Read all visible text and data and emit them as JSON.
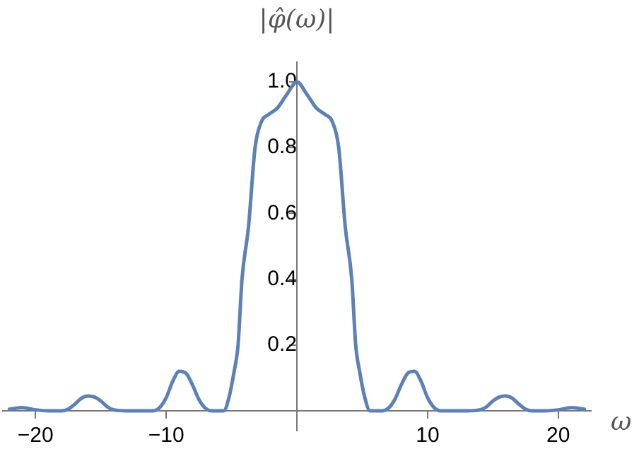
{
  "chart_data": {
    "type": "line",
    "ylabel": "|φ̂(ω)|",
    "xlabel": "ω",
    "series": [
      {
        "color": "#5e81b5",
        "x": [
          -22,
          -21,
          -20,
          -19,
          -18,
          -17.5,
          -17,
          -16.5,
          -16,
          -15.5,
          -15,
          -14.5,
          -14,
          -13,
          -11,
          -10.5,
          -10,
          -9.5,
          -9,
          -8.5,
          -8,
          -7.5,
          -7,
          -6.5,
          -5.6,
          -5.2,
          -4.8,
          -4.5,
          -4.2,
          -3.7,
          -3.2,
          -2.7,
          -2.2,
          -1.5,
          -0.8,
          0,
          0.8,
          1.5,
          2.2,
          2.7,
          3.2,
          3.7,
          4.2,
          4.5,
          4.8,
          5.2,
          5.6,
          6.5,
          7,
          7.5,
          8,
          8.5,
          9,
          9.5,
          10,
          10.5,
          11,
          13,
          14,
          14.5,
          15,
          15.5,
          16,
          16.5,
          17,
          17.5,
          18,
          19,
          20,
          21,
          22
        ],
        "values": [
          0.005,
          0.01,
          0.003,
          0,
          0,
          0.005,
          0.02,
          0.038,
          0.045,
          0.042,
          0.03,
          0.012,
          0.003,
          0,
          0,
          0.01,
          0.04,
          0.09,
          0.12,
          0.115,
          0.08,
          0.035,
          0.008,
          0,
          0,
          0.04,
          0.12,
          0.2,
          0.4,
          0.56,
          0.8,
          0.88,
          0.9,
          0.92,
          0.96,
          1.0,
          0.96,
          0.92,
          0.9,
          0.88,
          0.8,
          0.56,
          0.4,
          0.2,
          0.12,
          0.04,
          0,
          0,
          0.008,
          0.035,
          0.08,
          0.115,
          0.12,
          0.09,
          0.04,
          0.01,
          0,
          0,
          0.003,
          0.012,
          0.03,
          0.042,
          0.045,
          0.038,
          0.02,
          0.005,
          0,
          0,
          0.003,
          0.01,
          0.005
        ]
      }
    ],
    "xlim": [
      -22.5,
      22.5
    ],
    "xticks": [
      {
        "value": -20,
        "label": "−20"
      },
      {
        "value": -10,
        "label": "−10"
      },
      10,
      20
    ],
    "ylim": [
      -0.06,
      1.06
    ],
    "yticks": [
      0.2,
      0.4,
      0.6,
      0.8,
      {
        "value": 1,
        "label": "1.0"
      }
    ],
    "grid": false,
    "legend": false,
    "marker": "none",
    "line_style": "solid"
  }
}
